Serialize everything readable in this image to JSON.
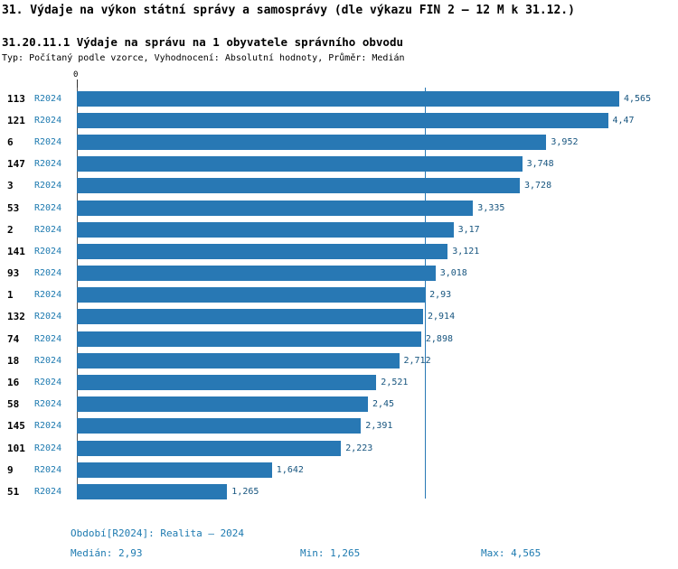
{
  "header": {
    "title": "31. Výdaje na výkon státní správy a samosprávy (dle výkazu FIN 2 – 12 M k 31.12.)",
    "subtitle": "31.20.11.1 Výdaje na správu na 1 obyvatele správního obvodu",
    "meta": "Typ: Počítaný podle vzorce, Vyhodnocení: Absolutní hodnoty, Průměr: Medián"
  },
  "colors": {
    "bar": "#2878b4",
    "accent": "#1d7ab0",
    "value_text": "#17557f"
  },
  "chart_data": {
    "type": "bar",
    "orientation": "horizontal",
    "title": "31.20.11.1 Výdaje na správu na 1 obyvatele správního obvodu",
    "x_axis": {
      "origin_label": "0",
      "min": 0,
      "max": 4.565
    },
    "median_line": {
      "value": 2.93,
      "label": "2,93"
    },
    "legend": "R2024",
    "rows": [
      {
        "id": "113",
        "period": "R2024",
        "value": 4.565,
        "label": "4,565"
      },
      {
        "id": "121",
        "period": "R2024",
        "value": 4.47,
        "label": "4,47"
      },
      {
        "id": "6",
        "period": "R2024",
        "value": 3.952,
        "label": "3,952"
      },
      {
        "id": "147",
        "period": "R2024",
        "value": 3.748,
        "label": "3,748"
      },
      {
        "id": "3",
        "period": "R2024",
        "value": 3.728,
        "label": "3,728"
      },
      {
        "id": "53",
        "period": "R2024",
        "value": 3.335,
        "label": "3,335"
      },
      {
        "id": "2",
        "period": "R2024",
        "value": 3.17,
        "label": "3,17"
      },
      {
        "id": "141",
        "period": "R2024",
        "value": 3.121,
        "label": "3,121"
      },
      {
        "id": "93",
        "period": "R2024",
        "value": 3.018,
        "label": "3,018"
      },
      {
        "id": "1",
        "period": "R2024",
        "value": 2.93,
        "label": "2,93"
      },
      {
        "id": "132",
        "period": "R2024",
        "value": 2.914,
        "label": "2,914"
      },
      {
        "id": "74",
        "period": "R2024",
        "value": 2.898,
        "label": "2,898"
      },
      {
        "id": "18",
        "period": "R2024",
        "value": 2.712,
        "label": "2,712"
      },
      {
        "id": "16",
        "period": "R2024",
        "value": 2.521,
        "label": "2,521"
      },
      {
        "id": "58",
        "period": "R2024",
        "value": 2.45,
        "label": "2,45"
      },
      {
        "id": "145",
        "period": "R2024",
        "value": 2.391,
        "label": "2,391"
      },
      {
        "id": "101",
        "period": "R2024",
        "value": 2.223,
        "label": "2,223"
      },
      {
        "id": "9",
        "period": "R2024",
        "value": 1.642,
        "label": "1,642"
      },
      {
        "id": "51",
        "period": "R2024",
        "value": 1.265,
        "label": "1,265"
      }
    ]
  },
  "footer": {
    "period": "Období[R2024]: Realita – 2024",
    "median": "Medián: 2,93",
    "min": "Min: 1,265",
    "max": "Max: 4,565"
  }
}
